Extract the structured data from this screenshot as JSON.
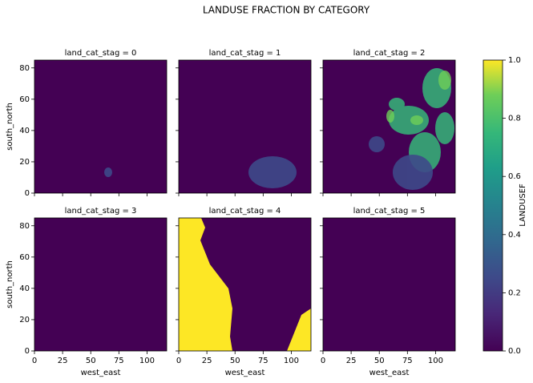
{
  "chart_data": {
    "type": "heatmap",
    "title": "LANDUSE FRACTION BY CATEGORY",
    "facets": [
      {
        "title": "land_cat_stag = 0"
      },
      {
        "title": "land_cat_stag = 1"
      },
      {
        "title": "land_cat_stag = 2"
      },
      {
        "title": "land_cat_stag = 3"
      },
      {
        "title": "land_cat_stag = 4"
      },
      {
        "title": "land_cat_stag = 5"
      }
    ],
    "xlabel": "west_east",
    "ylabel": "south_north",
    "xlim": [
      0,
      117.5
    ],
    "xticks": [
      0,
      25,
      50,
      75,
      100
    ],
    "ylim": [
      0,
      85
    ],
    "yticks": [
      0,
      20,
      40,
      60,
      80
    ],
    "colorbar": {
      "label": "LANDUSEF",
      "lim": [
        0,
        1
      ],
      "ticks": [
        0.0,
        0.2,
        0.4,
        0.6,
        0.8,
        1.0
      ]
    }
  }
}
